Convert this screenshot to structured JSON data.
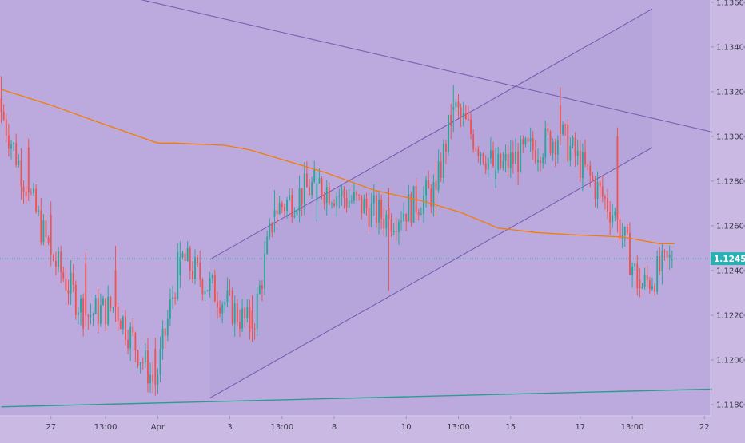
{
  "colors": {
    "background": "#c9b9e3",
    "plot_area": "#bcaade",
    "up_candle": "#26a69a",
    "down_candle": "#ef5350",
    "moving_average": "#f57c00",
    "channel_line": "#7a5fb0",
    "support_line": "#2a9d8f",
    "price_line": "#2ab0b0",
    "price_tag": "#2ab0b0",
    "axis_text": "#3a3a4a"
  },
  "chart_data": {
    "type": "candlestick",
    "title": "",
    "ylim": [
      1.1175,
      1.1361
    ],
    "price_axis_ticks": [
      "1.13600",
      "1.13400",
      "1.13200",
      "1.13000",
      "1.12800",
      "1.12600",
      "1.12400",
      "1.12200",
      "1.12000",
      "1.11800"
    ],
    "price_axis_tick_values": [
      1.136,
      1.134,
      1.132,
      1.13,
      1.128,
      1.126,
      1.124,
      1.122,
      1.12,
      1.118
    ],
    "time_axis_ticks": [
      "27",
      "13:00",
      "Apr",
      "3",
      "13:00",
      "8",
      "10",
      "13:00",
      "15",
      "17",
      "13:00",
      "22"
    ],
    "time_axis_tick_bar_index": [
      20,
      42,
      63,
      92,
      113,
      134,
      163,
      184,
      205,
      233,
      254,
      283
    ],
    "bar_count": 286,
    "current_price": 1.12453,
    "current_price_label": "1.12453",
    "candles_ohlc_at_turning_points": [
      [
        1.1317,
        1.1327,
        1.1306,
        1.1311
      ],
      [
        1.1295,
        1.1299,
        1.1271,
        1.1275
      ],
      [
        1.1265,
        1.1271,
        1.1242,
        1.1247
      ],
      [
        1.1243,
        1.1248,
        1.1215,
        1.122
      ],
      [
        1.124,
        1.1251,
        1.1217,
        1.1224
      ],
      [
        1.1205,
        1.121,
        1.1184,
        1.1189
      ],
      [
        1.1238,
        1.1253,
        1.1232,
        1.1246
      ],
      [
        1.1222,
        1.1229,
        1.1208,
        1.1214
      ],
      [
        1.1264,
        1.1276,
        1.1257,
        1.1267
      ],
      [
        1.1272,
        1.1284,
        1.1262,
        1.1279
      ],
      [
        1.1268,
        1.1277,
        1.1231,
        1.1263
      ],
      [
        1.128,
        1.1289,
        1.1264,
        1.1276
      ],
      [
        1.1312,
        1.1323,
        1.1302,
        1.1313
      ],
      [
        1.1281,
        1.1295,
        1.1277,
        1.1285
      ],
      [
        1.1314,
        1.1322,
        1.1296,
        1.1301
      ],
      [
        1.13,
        1.1304,
        1.1257,
        1.1263
      ],
      [
        1.1236,
        1.1241,
        1.1228,
        1.1232
      ],
      [
        1.1245,
        1.1249,
        1.1241,
        1.1245
      ]
    ],
    "moving_average": {
      "bar_index": [
        0,
        20,
        40,
        63,
        70,
        90,
        100,
        130,
        150,
        170,
        185,
        200,
        215,
        230,
        250,
        265,
        271
      ],
      "values": [
        1.1321,
        1.1314,
        1.1306,
        1.1297,
        1.1297,
        1.1296,
        1.1294,
        1.1284,
        1.1276,
        1.1271,
        1.1266,
        1.1259,
        1.1257,
        1.1256,
        1.1255,
        1.1252,
        1.1252
      ]
    },
    "trend_lines": [
      {
        "name": "upper descending line",
        "from": {
          "bar": 53,
          "price": 1.1362
        },
        "to": {
          "bar": 286,
          "price": 1.1302
        }
      },
      {
        "name": "rising channel upper",
        "from": {
          "bar": 84,
          "price": 1.1245
        },
        "to": {
          "bar": 262,
          "price": 1.1357
        }
      },
      {
        "name": "rising channel lower",
        "from": {
          "bar": 84,
          "price": 1.1183
        },
        "to": {
          "bar": 262,
          "price": 1.1295
        }
      },
      {
        "name": "rising support line",
        "from": {
          "bar": 0,
          "price": 1.1179
        },
        "to": {
          "bar": 286,
          "price": 1.1187
        }
      }
    ]
  }
}
